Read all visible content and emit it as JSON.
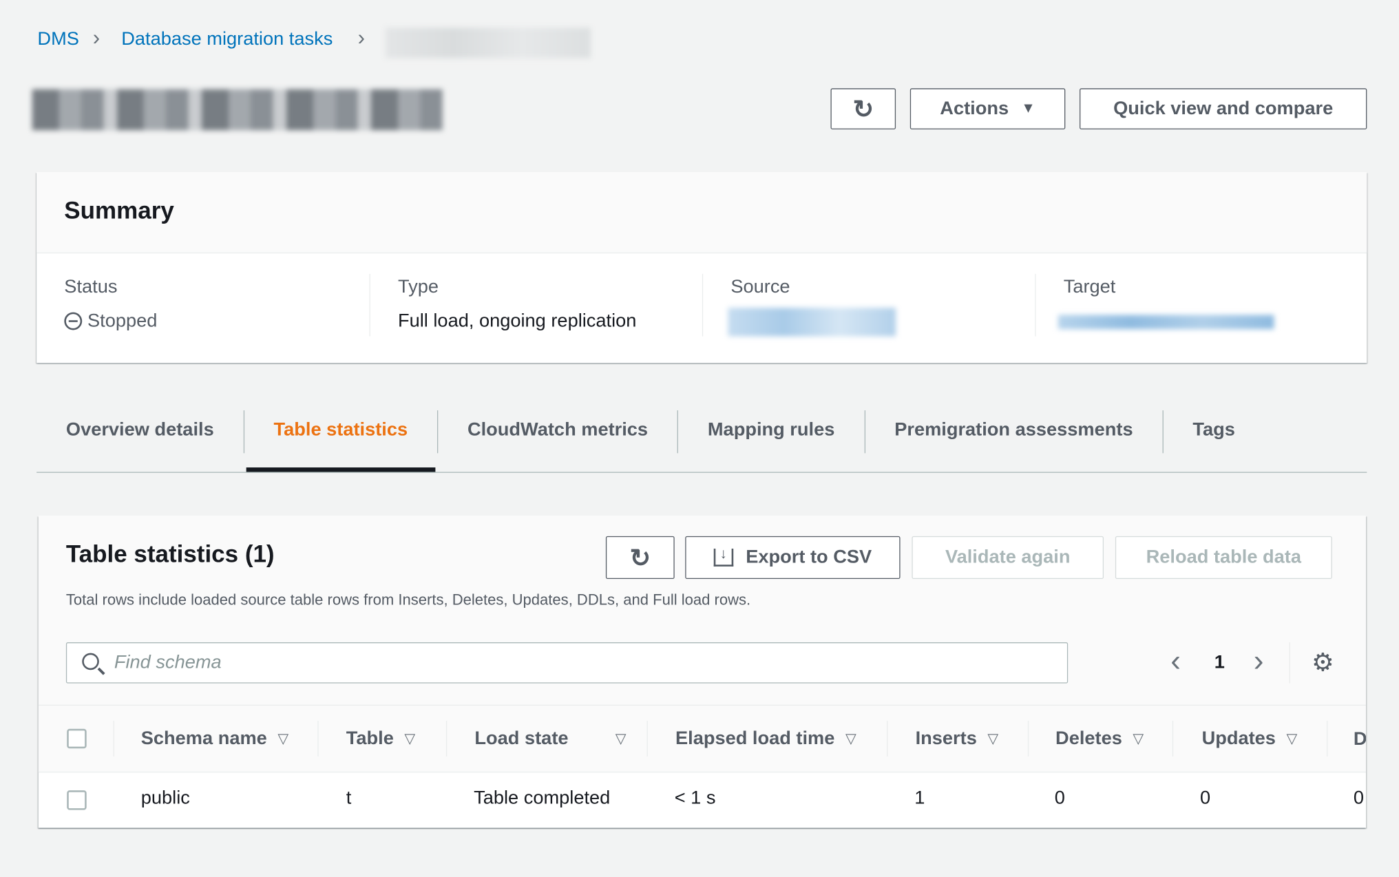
{
  "breadcrumb": {
    "items": [
      "DMS",
      "Database migration tasks"
    ]
  },
  "header": {
    "actions_label": "Actions",
    "quick_view_label": "Quick view and compare"
  },
  "summary": {
    "title": "Summary",
    "status_label": "Status",
    "status_value": "Stopped",
    "type_label": "Type",
    "type_value": "Full load, ongoing replication",
    "source_label": "Source",
    "target_label": "Target"
  },
  "tabs": [
    {
      "label": "Overview details"
    },
    {
      "label": "Table statistics",
      "active": true
    },
    {
      "label": "CloudWatch metrics"
    },
    {
      "label": "Mapping rules"
    },
    {
      "label": "Premigration assessments"
    },
    {
      "label": "Tags"
    }
  ],
  "table_stats": {
    "title": "Table statistics (1)",
    "export_label": "Export to CSV",
    "validate_label": "Validate again",
    "reload_label": "Reload table data",
    "description": "Total rows include loaded source table rows from Inserts, Deletes, Updates, DDLs, and Full load rows.",
    "search_placeholder": "Find schema",
    "page": "1",
    "columns": [
      "Schema name",
      "Table",
      "Load state",
      "Elapsed load time",
      "Inserts",
      "Deletes",
      "Updates",
      "D"
    ],
    "rows": [
      [
        "public",
        "t",
        "Table completed",
        "< 1 s",
        "1",
        "0",
        "0",
        "0"
      ]
    ]
  },
  "colors": {
    "link": "#0073bb",
    "active_tab": "#ec7211",
    "text": "#16191f",
    "muted": "#545b64"
  }
}
